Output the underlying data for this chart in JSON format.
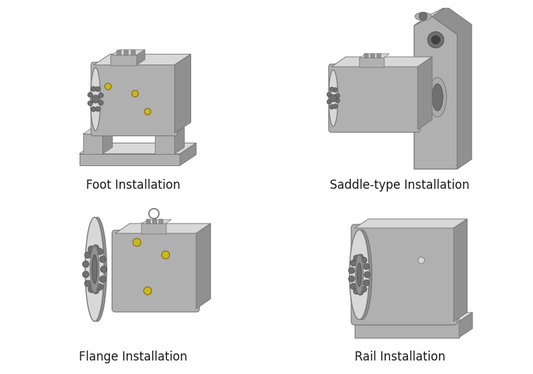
{
  "background_color": "#ffffff",
  "labels": [
    "Foot Installation",
    "Saddle-type Installation",
    "Flange Installation",
    "Rail Installation"
  ],
  "label_fontsize": 12,
  "label_color": "#1a1a1a",
  "label_font": "DejaVu Sans",
  "body_light": "#cccccc",
  "body_mid": "#b0b0b0",
  "body_dark": "#909090",
  "body_vdark": "#707070",
  "face_light": "#d8d8d8",
  "face_mid": "#bebebe",
  "yellow": "#c8b820",
  "edge": "#787878",
  "edge_dark": "#505050",
  "fig_width": 7.5,
  "fig_height": 5.27,
  "dpi": 100
}
